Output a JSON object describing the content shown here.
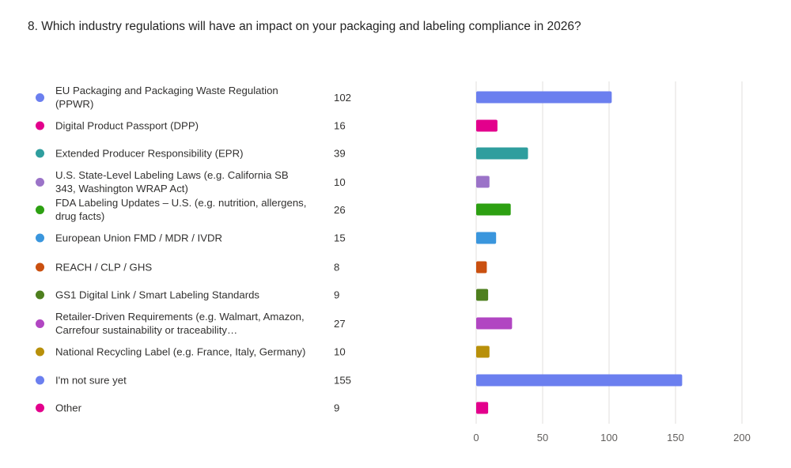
{
  "chart_data": {
    "type": "bar",
    "orientation": "horizontal",
    "title": "8. Which industry regulations will have an impact on your packaging and labeling compliance in 2026?",
    "categories": [
      "EU Packaging and Packaging Waste Regulation (PPWR)",
      "Digital Product Passport (DPP)",
      "Extended Producer Responsibility (EPR)",
      "U.S. State-Level Labeling Laws (e.g. California SB 343, Washington WRAP Act)",
      "FDA Labeling Updates – U.S. (e.g. nutrition, allergens, drug facts)",
      "European Union FMD / MDR / IVDR",
      "REACH / CLP / GHS",
      "GS1 Digital Link / Smart Labeling Standards",
      "Retailer-Driven Requirements (e.g. Walmart, Amazon, Carrefour sustainability or traceability…",
      "National Recycling Label (e.g. France, Italy, Germany)",
      "I'm not sure yet",
      "Other"
    ],
    "values": [
      102,
      16,
      39,
      10,
      26,
      15,
      8,
      9,
      27,
      10,
      155,
      9
    ],
    "colors": [
      "#6b7fef",
      "#e3008c",
      "#2f9e9e",
      "#9b73c8",
      "#2da012",
      "#3a96dd",
      "#ca5010",
      "#4e7f1e",
      "#b146c2",
      "#b8900a",
      "#6b7fef",
      "#e3008c"
    ],
    "xlim": [
      0,
      200
    ],
    "xticks": [
      "0",
      "50",
      "100",
      "150",
      "200"
    ],
    "grid": true,
    "legend": "left"
  }
}
